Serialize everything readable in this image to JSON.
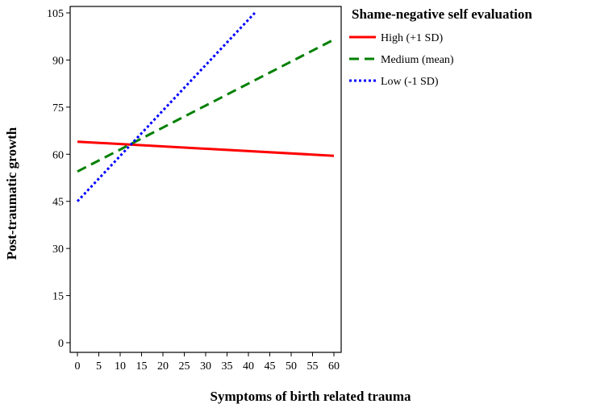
{
  "chart_data": {
    "type": "line",
    "title": "",
    "xlabel": "Symptoms of birth related trauma",
    "ylabel": "Post-traumatic growth",
    "xlim": [
      0,
      60
    ],
    "ylim": [
      0,
      105
    ],
    "xticks": [
      0,
      5,
      10,
      15,
      20,
      25,
      30,
      35,
      40,
      45,
      50,
      55,
      60
    ],
    "yticks": [
      0,
      15,
      30,
      45,
      60,
      75,
      90,
      105
    ],
    "grid": false,
    "legend": {
      "title": "Shame-negative self evaluation",
      "placement": "top-right-outside"
    },
    "series": [
      {
        "name": "High (+1 SD)",
        "color": "#ff0000",
        "style": "solid",
        "x": [
          0,
          60
        ],
        "y": [
          64,
          59.5
        ]
      },
      {
        "name": "Medium (mean)",
        "color": "#008000",
        "style": "dashed",
        "x": [
          0,
          60
        ],
        "y": [
          54.5,
          96.5
        ]
      },
      {
        "name": "Low (-1 SD)",
        "color": "#0000ff",
        "style": "dotted",
        "x": [
          0,
          41.5
        ],
        "y": [
          45,
          105
        ]
      }
    ]
  }
}
